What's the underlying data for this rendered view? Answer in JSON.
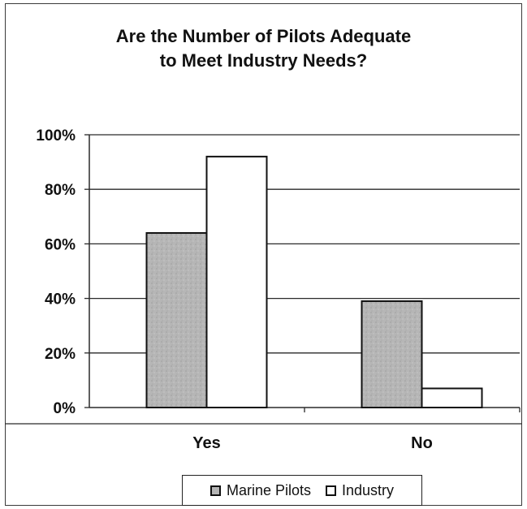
{
  "chart_data": {
    "type": "bar",
    "title": "Are the Number of Pilots Adequate\nto Meet Industry Needs?",
    "categories": [
      "Yes",
      "No"
    ],
    "series": [
      {
        "name": "Marine Pilots",
        "values": [
          64,
          39
        ],
        "color": "#b5b5b5"
      },
      {
        "name": "Industry",
        "values": [
          92,
          7
        ],
        "color": "#ffffff"
      }
    ],
    "y_ticks": [
      "0%",
      "20%",
      "40%",
      "60%",
      "80%",
      "100%"
    ],
    "ylim": [
      0,
      100
    ],
    "grid": true,
    "legend_position": "bottom"
  }
}
